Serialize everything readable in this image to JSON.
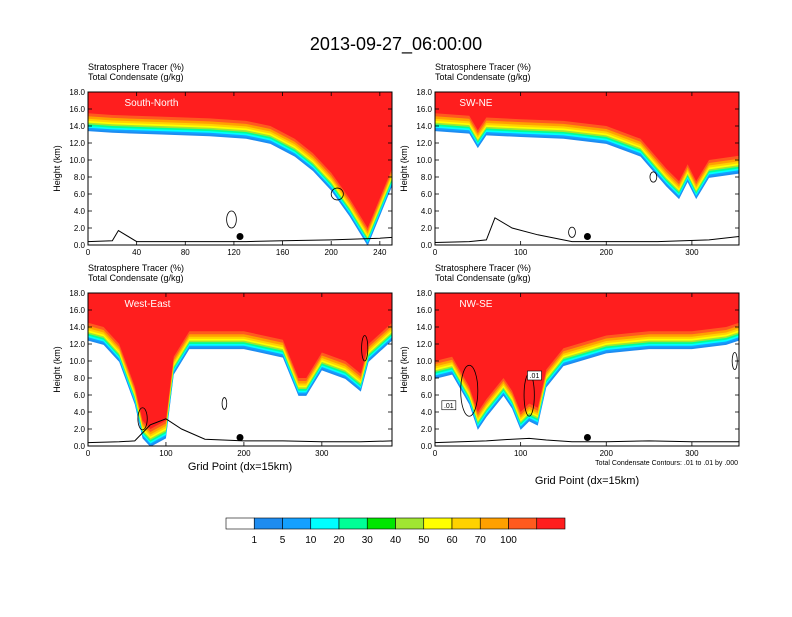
{
  "figure": {
    "title": "2013-09-27_06:00:00",
    "xlabel": "Grid Point (dx=15km)",
    "ylabel": "Height (km)",
    "subtitle_line1": "Stratosphere Tracer   (%)",
    "subtitle_line2": "Total Condensate   (g/kg)",
    "contour_note": "Total Condensate Contours: .01 to .01 by .000"
  },
  "colorbar": {
    "labels": [
      "1",
      "5",
      "10",
      "20",
      "30",
      "40",
      "50",
      "60",
      "70",
      "100"
    ],
    "colors": [
      "#ffffff",
      "#1e8cf0",
      "#14a0ff",
      "#00ffff",
      "#00ff96",
      "#00e600",
      "#a0e632",
      "#ffff00",
      "#ffd200",
      "#ffa000",
      "#ff5a1e",
      "#ff1e1e"
    ]
  },
  "chart_data": [
    {
      "type": "heatmap",
      "title": "South-North",
      "xlabel": "",
      "ylabel": "Height (km)",
      "xlim": [
        0,
        250
      ],
      "ylim": [
        0,
        18
      ],
      "xticks": [
        "0",
        "40",
        "80",
        "120",
        "160",
        "200",
        "240"
      ],
      "xtick_values": [
        0,
        40,
        80,
        120,
        160,
        200,
        240
      ],
      "yticks": [
        "0.0",
        "2.0",
        "4.0",
        "6.0",
        "8.0",
        "10.0",
        "12.0",
        "14.0",
        "16.0",
        "18.0"
      ],
      "marker_x": 125,
      "tracer_base_profile": {
        "x": [
          0,
          20,
          60,
          100,
          130,
          150,
          170,
          185,
          200,
          215,
          230,
          240,
          250
        ],
        "y": [
          15.5,
          15.3,
          15.1,
          14.9,
          14.6,
          14.0,
          12.5,
          10.8,
          8.5,
          5.5,
          2.0,
          5.5,
          9.0
        ]
      },
      "surface_contour": {
        "x": [
          0,
          20,
          25,
          40,
          60,
          100,
          130,
          160,
          200,
          240,
          250
        ],
        "y": [
          0.4,
          0.5,
          1.7,
          0.4,
          0.4,
          0.4,
          0.4,
          0.5,
          0.6,
          0.8,
          0.9
        ]
      }
    },
    {
      "type": "heatmap",
      "title": "SW-NE",
      "xlabel": "",
      "ylabel": "Height (km)",
      "xlim": [
        0,
        355
      ],
      "ylim": [
        0,
        18
      ],
      "xticks": [
        "0",
        "100",
        "200",
        "300"
      ],
      "xtick_values": [
        0,
        100,
        200,
        300
      ],
      "yticks": [
        "0.0",
        "2.0",
        "4.0",
        "6.0",
        "8.0",
        "10.0",
        "12.0",
        "14.0",
        "16.0",
        "18.0"
      ],
      "marker_x": 178,
      "tracer_base_profile": {
        "x": [
          0,
          40,
          50,
          60,
          100,
          150,
          200,
          240,
          270,
          285,
          295,
          305,
          320,
          355
        ],
        "y": [
          15.5,
          15.2,
          13.5,
          15.0,
          14.8,
          14.6,
          14.0,
          12.5,
          9.0,
          7.5,
          9.5,
          7.5,
          10.0,
          10.5
        ]
      },
      "surface_contour": {
        "x": [
          0,
          40,
          60,
          70,
          90,
          120,
          160,
          200,
          260,
          320,
          355
        ],
        "y": [
          0.3,
          0.4,
          0.6,
          3.2,
          2.0,
          1.2,
          0.4,
          0.4,
          0.4,
          0.6,
          1.0
        ]
      }
    },
    {
      "type": "heatmap",
      "title": "West-East",
      "xlabel": "Grid Point (dx=15km)",
      "ylabel": "Height (km)",
      "xlim": [
        0,
        390
      ],
      "ylim": [
        0,
        18
      ],
      "xticks": [
        "0",
        "100",
        "200",
        "300"
      ],
      "xtick_values": [
        0,
        100,
        200,
        300
      ],
      "yticks": [
        "0.0",
        "2.0",
        "4.0",
        "6.0",
        "8.0",
        "10.0",
        "12.0",
        "14.0",
        "16.0",
        "18.0"
      ],
      "marker_x": 195,
      "tracer_base_profile": {
        "x": [
          0,
          20,
          40,
          60,
          70,
          80,
          100,
          110,
          130,
          200,
          250,
          270,
          280,
          300,
          330,
          350,
          360,
          390
        ],
        "y": [
          14.5,
          14.0,
          12.0,
          7.0,
          3.0,
          2.0,
          3.0,
          10.5,
          13.5,
          13.5,
          12.5,
          8.0,
          8.0,
          11.0,
          10.0,
          8.5,
          12.0,
          14.5
        ]
      },
      "surface_contour": {
        "x": [
          0,
          40,
          60,
          80,
          100,
          120,
          150,
          200,
          250,
          300,
          350,
          390
        ],
        "y": [
          0.4,
          0.5,
          0.6,
          2.5,
          3.2,
          2.0,
          0.8,
          0.6,
          0.6,
          0.5,
          0.5,
          0.6
        ]
      }
    },
    {
      "type": "heatmap",
      "title": "NW-SE",
      "xlabel": "Grid Point (dx=15km)",
      "ylabel": "Height (km)",
      "xlim": [
        0,
        355
      ],
      "ylim": [
        0,
        18
      ],
      "xticks": [
        "0",
        "100",
        "200",
        "300"
      ],
      "xtick_values": [
        0,
        100,
        200,
        300
      ],
      "yticks": [
        "0.0",
        "2.0",
        "4.0",
        "6.0",
        "8.0",
        "10.0",
        "12.0",
        "14.0",
        "16.0",
        "18.0"
      ],
      "marker_x": 178,
      "contour_labels": [
        ".01",
        ".01"
      ],
      "tracer_base_profile": {
        "x": [
          0,
          20,
          40,
          50,
          60,
          80,
          90,
          100,
          110,
          120,
          130,
          150,
          200,
          250,
          300,
          340,
          355
        ],
        "y": [
          10.0,
          10.5,
          7.0,
          4.0,
          5.5,
          8.0,
          6.5,
          4.0,
          5.0,
          4.5,
          9.0,
          11.5,
          13.0,
          13.5,
          13.5,
          14.0,
          14.5
        ]
      },
      "surface_contour": {
        "x": [
          0,
          30,
          60,
          90,
          110,
          130,
          160,
          200,
          250,
          300,
          355
        ],
        "y": [
          0.4,
          0.5,
          0.6,
          0.8,
          0.9,
          0.7,
          0.5,
          0.5,
          0.6,
          0.5,
          0.5
        ]
      }
    }
  ]
}
